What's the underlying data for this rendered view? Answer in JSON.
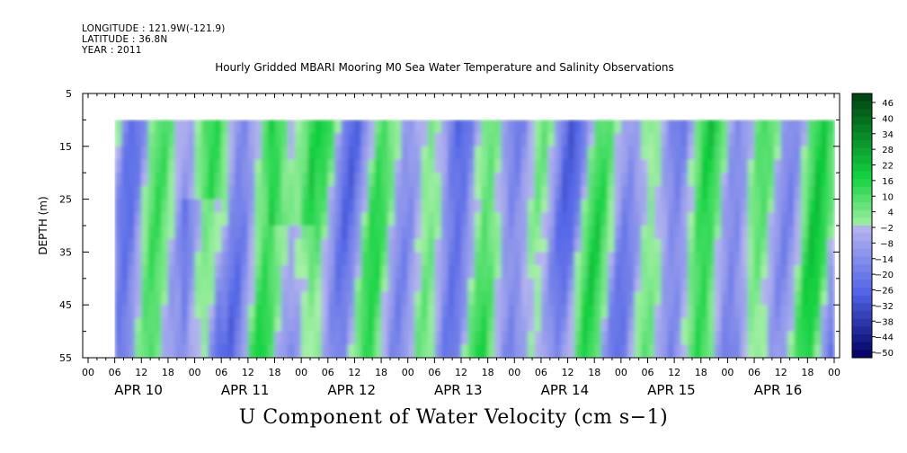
{
  "header": {
    "longitude": "LONGITUDE : 121.9W(-121.9)",
    "latitude": "LATITUDE : 36.8N",
    "year": "YEAR : 2011"
  },
  "chart_data": {
    "type": "heatmap",
    "title": "Hourly Gridded MBARI Mooring M0 Sea Water Temperature and Salinity Observations",
    "bottom_title": "U Component of Water Velocity (cm s−1)",
    "ylabel": "DEPTH (m)",
    "y_ticks": [
      "5",
      "15",
      "25",
      "35",
      "45",
      "55"
    ],
    "ylim": [
      5,
      55
    ],
    "y_reversed": true,
    "data_depth_range": [
      10,
      55
    ],
    "x_hour_ticks": [
      "00",
      "06",
      "12",
      "18",
      "00",
      "06",
      "12",
      "18",
      "00",
      "06",
      "12",
      "18",
      "00",
      "06",
      "12",
      "18",
      "00",
      "06",
      "12",
      "18",
      "00",
      "06",
      "12",
      "18",
      "00",
      "06",
      "12",
      "18",
      "00"
    ],
    "x_day_labels": [
      "APR 10",
      "APR 11",
      "APR 12",
      "APR 13",
      "APR 14",
      "APR 15",
      "APR 16"
    ],
    "colorbar_labels": [
      "46",
      "40",
      "34",
      "28",
      "22",
      "16",
      "10",
      "4",
      "−2",
      "−8",
      "−14",
      "−20",
      "−26",
      "−32",
      "−38",
      "−44",
      "−50"
    ],
    "colorbar_range": [
      -50,
      52
    ],
    "colors": {
      "positive_max": "#004010",
      "positive_mid": "#12d240",
      "positive_low": "#a8f0a8",
      "negative_low": "#b4b4ee",
      "negative_mid": "#5064e6",
      "negative_max": "#000060"
    }
  }
}
